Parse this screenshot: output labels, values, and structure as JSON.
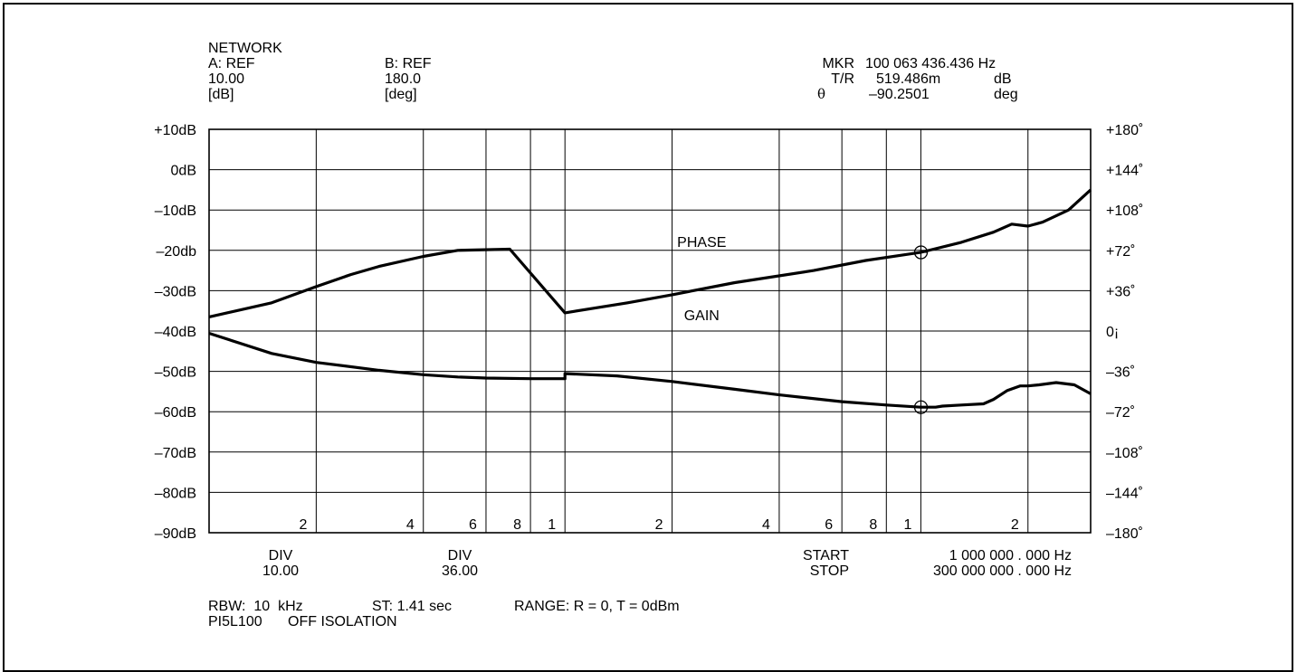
{
  "header": {
    "network": "NETWORK",
    "a_ref": "A: REF",
    "a_val": "10.00",
    "a_unit": "[dB]",
    "b_ref": "B: REF",
    "b_val": "180.0",
    "b_unit": "[deg]",
    "mkr_label": "MKR",
    "mkr_freq": "100 063 436.436 Hz",
    "tr_label": "T/R",
    "tr_val": "519.486m",
    "tr_unit": "dB",
    "theta_label": "θ",
    "theta_val": "–90.2501",
    "theta_unit": "deg"
  },
  "footer": {
    "div_a_label": "DIV",
    "div_a_val": "10.00",
    "div_b_label": "DIV",
    "div_b_val": "36.00",
    "start_label": "START",
    "start_val": "1 000 000 . 000 Hz",
    "stop_label": "STOP",
    "stop_val": "300 000 000 . 000 Hz",
    "rbw": "RBW:  10  kHz",
    "st": "ST: 1.41 sec",
    "range": "RANGE: R = 0, T = 0dBm",
    "device": "PI5L100",
    "mode": "OFF ISOLATION"
  },
  "chart_data": {
    "type": "line",
    "x_scale": "log",
    "xlim": [
      1000000,
      300000000
    ],
    "ylim_left": [
      -90,
      10
    ],
    "ylim_right": [
      -180,
      180
    ],
    "left_ticks": [
      "+10dB",
      "0dB",
      "–10dB",
      "–20db",
      "–30dB",
      "–40dB",
      "–50dB",
      "–60dB",
      "–70dB",
      "–80dB",
      "–90dB"
    ],
    "right_ticks": [
      "+180˚",
      "+144˚",
      "+108˚",
      "+72˚",
      "+36˚",
      "0¡",
      "–36˚",
      "–72˚",
      "–108˚",
      "–144˚",
      "–180˚"
    ],
    "x_tick_labels": [
      {
        "label": "2",
        "x": 2000000
      },
      {
        "label": "4",
        "x": 4000000
      },
      {
        "label": "6",
        "x": 6000000
      },
      {
        "label": "8",
        "x": 8000000
      },
      {
        "label": "1",
        "x": 10000000
      },
      {
        "label": "2",
        "x": 20000000
      },
      {
        "label": "4",
        "x": 40000000
      },
      {
        "label": "6",
        "x": 60000000
      },
      {
        "label": "8",
        "x": 80000000
      },
      {
        "label": "1",
        "x": 100000000
      },
      {
        "label": "2",
        "x": 200000000
      }
    ],
    "grid": true,
    "series": [
      {
        "name": "PHASE",
        "axis": "right",
        "label_at": [
          15800000,
          80
        ],
        "x": [
          1000000,
          1500000,
          2000000,
          3000000,
          4000000,
          5000000,
          6000000,
          8000000,
          10000000,
          10000001,
          14000000,
          20000000,
          30000000,
          40000000,
          60000000,
          80000000,
          100000000,
          110000000,
          115000000,
          130000000,
          150000000,
          160000000,
          175000000,
          190000000,
          200000000,
          215000000,
          240000000,
          270000000,
          300000000
        ],
        "values": [
          -2,
          -20,
          -28,
          -35,
          -39,
          -41,
          -42,
          -42.5,
          -42.5,
          -38,
          -40,
          -45,
          -52,
          -57,
          -63,
          -66,
          -68,
          -68,
          -67,
          -66,
          -65,
          -61,
          -53,
          -49,
          -49,
          -48,
          -46,
          -48,
          -56
        ]
      },
      {
        "name": "GAIN",
        "axis": "left",
        "label_at": [
          15800000,
          -36
        ],
        "x": [
          1000000,
          1500000,
          2000000,
          2500000,
          3000000,
          4000000,
          5000000,
          7000000,
          10000000,
          15000000,
          20000000,
          30000000,
          50000000,
          70000000,
          100000000,
          130000000,
          160000000,
          180000000,
          200000000,
          220000000,
          260000000,
          300000000
        ],
        "values": [
          -36.5,
          -33,
          -29,
          -26,
          -24,
          -21.5,
          -20,
          -19.7,
          -35.5,
          -33,
          -31,
          -28,
          -25,
          -22.5,
          -20.5,
          -18,
          -15.5,
          -13.5,
          -14,
          -13,
          -10,
          -5
        ]
      }
    ],
    "marker": {
      "x": 100063436.436,
      "gain_db": -20.5,
      "phase_deg": -68
    }
  }
}
